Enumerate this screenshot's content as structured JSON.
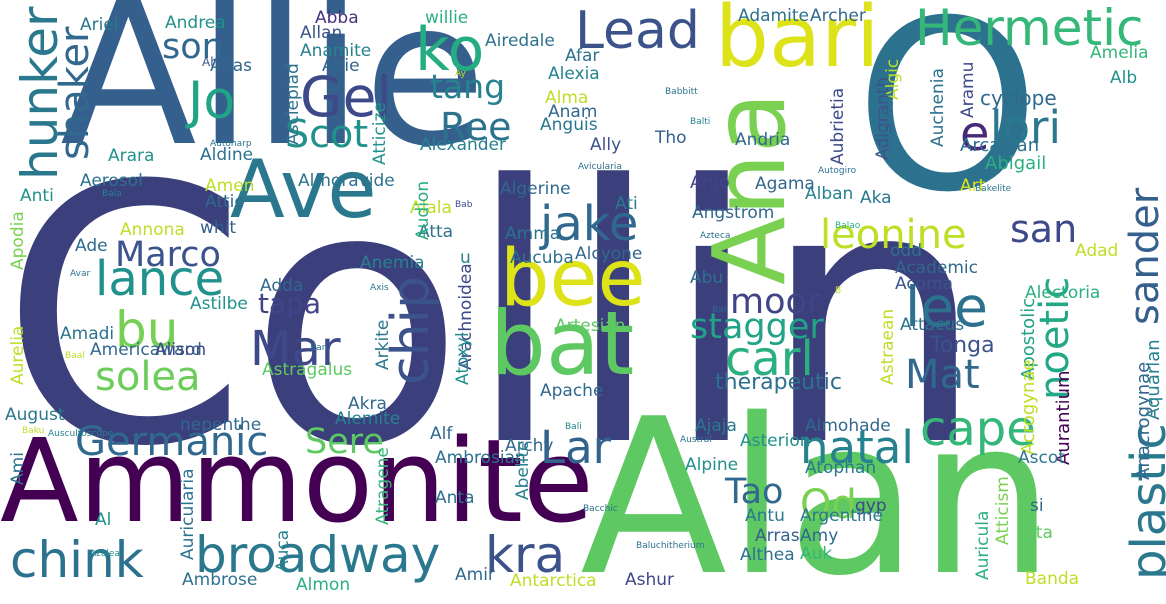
{
  "words": [
    {
      "text": "Collin",
      "color": "#3b3f7c"
    },
    {
      "text": "Allie",
      "color": "#35608d"
    },
    {
      "text": "Alan",
      "color": "#5ec962"
    },
    {
      "text": "Ammonite",
      "color": "#440154"
    },
    {
      "text": "Ana",
      "color": "#7ad151"
    },
    {
      "text": "O",
      "color": "#2c728e"
    },
    {
      "text": "bat",
      "color": "#5ec962"
    },
    {
      "text": "bee",
      "color": "#dde318"
    },
    {
      "text": "Ave",
      "color": "#2a788e"
    },
    {
      "text": "bari",
      "color": "#dde318"
    },
    {
      "text": "Hermetic",
      "color": "#35b779"
    },
    {
      "text": "Lead",
      "color": "#3b528b"
    },
    {
      "text": "Gel",
      "color": "#3e4989"
    },
    {
      "text": "ko",
      "color": "#25ac82"
    },
    {
      "text": "son",
      "color": "#31688e"
    },
    {
      "text": "Jo",
      "color": "#20a386"
    },
    {
      "text": "hunker",
      "color": "#2a788e"
    },
    {
      "text": "shaker",
      "color": "#31688e"
    },
    {
      "text": "tang",
      "color": "#26828e"
    },
    {
      "text": "Ree",
      "color": "#2c728e"
    },
    {
      "text": "Scot",
      "color": "#21918c"
    },
    {
      "text": "lori",
      "color": "#2a788e"
    },
    {
      "text": "e",
      "color": "#482878"
    },
    {
      "text": "cyclope",
      "color": "#31688e"
    },
    {
      "text": "Marco",
      "color": "#3b528b"
    },
    {
      "text": "jake",
      "color": "#31688e"
    },
    {
      "text": "lance",
      "color": "#21918c"
    },
    {
      "text": "bu",
      "color": "#75d054"
    },
    {
      "text": "Mar",
      "color": "#3e4989"
    },
    {
      "text": "solea",
      "color": "#6ccd5a"
    },
    {
      "text": "chip",
      "color": "#3b528b"
    },
    {
      "text": "tapa",
      "color": "#414487"
    },
    {
      "text": "leonine",
      "color": "#bddf26"
    },
    {
      "text": "san",
      "color": "#3e4989"
    },
    {
      "text": "moor",
      "color": "#414487"
    },
    {
      "text": "lee",
      "color": "#2c728e"
    },
    {
      "text": "stagger",
      "color": "#20a386"
    },
    {
      "text": "carl",
      "color": "#2ab07f"
    },
    {
      "text": "Mat",
      "color": "#31688e"
    },
    {
      "text": "sander",
      "color": "#35608d"
    },
    {
      "text": "noetic",
      "color": "#22a884"
    },
    {
      "text": "Germanic",
      "color": "#31688e"
    },
    {
      "text": "Sere",
      "color": "#5ec962"
    },
    {
      "text": "Lar",
      "color": "#33638d"
    },
    {
      "text": "natal",
      "color": "#26828e"
    },
    {
      "text": "cape",
      "color": "#35b779"
    },
    {
      "text": "plastic",
      "color": "#2a788e"
    },
    {
      "text": "Tao",
      "color": "#31688e"
    },
    {
      "text": "Od",
      "color": "#7ad151"
    },
    {
      "text": "chink",
      "color": "#2c728e"
    },
    {
      "text": "broadway",
      "color": "#2a788e"
    },
    {
      "text": "kra",
      "color": "#3b528b"
    },
    {
      "text": "therapeutic",
      "color": "#2d708e"
    },
    {
      "text": "Tonga",
      "color": "#3b528b"
    },
    {
      "text": "Apostolic",
      "color": "#20a386"
    },
    {
      "text": "Acrogynae",
      "color": "#bddf26"
    },
    {
      "text": "Aurantium",
      "color": "#440154"
    },
    {
      "text": "Anacrogynae",
      "color": "#31688e"
    },
    {
      "text": "Aquarian",
      "color": "#26828e"
    },
    {
      "text": "Amelia",
      "color": "#35b779"
    },
    {
      "text": "Alb",
      "color": "#21918c"
    },
    {
      "text": "Arcadian",
      "color": "#2c728e"
    },
    {
      "text": "Abigail",
      "color": "#2ab07f"
    },
    {
      "text": "Ariel",
      "color": "#2a788e"
    },
    {
      "text": "Andrea",
      "color": "#21918c"
    },
    {
      "text": "Abba",
      "color": "#46327e"
    },
    {
      "text": "Allan",
      "color": "#3b528b"
    },
    {
      "text": "Anamite",
      "color": "#26828e"
    },
    {
      "text": "Abie",
      "color": "#31688e"
    },
    {
      "text": "Ah",
      "color": "#3b528b"
    },
    {
      "text": "Atlas",
      "color": "#31688e"
    },
    {
      "text": "Asclepiad",
      "color": "#2c728e"
    },
    {
      "text": "Atticize",
      "color": "#21918c"
    },
    {
      "text": "willie",
      "color": "#2ab07f"
    },
    {
      "text": "Airedale",
      "color": "#2c728e"
    },
    {
      "text": "Afar",
      "color": "#2c728e"
    },
    {
      "text": "Alexia",
      "color": "#26828e"
    },
    {
      "text": "Adamite",
      "color": "#2c728e"
    },
    {
      "text": "Archer",
      "color": "#31688e"
    },
    {
      "text": "Anguis",
      "color": "#2a788e"
    },
    {
      "text": "Alma",
      "color": "#bddf26"
    },
    {
      "text": "Anam",
      "color": "#31688e"
    },
    {
      "text": "Ally",
      "color": "#3b528b"
    },
    {
      "text": "Alexander",
      "color": "#26828e"
    },
    {
      "text": "Tho",
      "color": "#35608d"
    },
    {
      "text": "Andria",
      "color": "#31688e"
    },
    {
      "text": "Aubrietia",
      "color": "#3e4989"
    },
    {
      "text": "Adigranth",
      "color": "#3b528b"
    },
    {
      "text": "Algic",
      "color": "#bddf26"
    },
    {
      "text": "Atlantic",
      "color": "#31688e"
    },
    {
      "text": "Auchenia",
      "color": "#2c728e"
    },
    {
      "text": "Aramu",
      "color": "#3e4989"
    },
    {
      "text": "Aldine",
      "color": "#2c728e"
    },
    {
      "text": "Arara",
      "color": "#21918c"
    },
    {
      "text": "Aerosol",
      "color": "#2c728e"
    },
    {
      "text": "Anti",
      "color": "#21918c"
    },
    {
      "text": "Amen",
      "color": "#bddf26"
    },
    {
      "text": "Attic",
      "color": "#31688e"
    },
    {
      "text": "Almoravide",
      "color": "#2c728e"
    },
    {
      "text": "Algerine",
      "color": "#31688e"
    },
    {
      "text": "Argo",
      "color": "#414487"
    },
    {
      "text": "Agama",
      "color": "#31688e"
    },
    {
      "text": "Alban",
      "color": "#26828e"
    },
    {
      "text": "Aka",
      "color": "#2a788e"
    },
    {
      "text": "Art",
      "color": "#dde318"
    },
    {
      "text": "Apodia",
      "color": "#7ad151"
    },
    {
      "text": "Annona",
      "color": "#bddf26"
    },
    {
      "text": "whit",
      "color": "#35608d"
    },
    {
      "text": "Alala",
      "color": "#bddf26"
    },
    {
      "text": "Ati",
      "color": "#2a788e"
    },
    {
      "text": "Angstrom",
      "color": "#31688e"
    },
    {
      "text": "Adad",
      "color": "#bddf26"
    },
    {
      "text": "Ade",
      "color": "#31688e"
    },
    {
      "text": "Atta",
      "color": "#2c728e"
    },
    {
      "text": "Amma",
      "color": "#2c728e"
    },
    {
      "text": "Audion",
      "color": "#2ab07f"
    },
    {
      "text": "u",
      "color": "#26828e"
    },
    {
      "text": "Aucuba",
      "color": "#2c728e"
    },
    {
      "text": "Alcyone",
      "color": "#31688e"
    },
    {
      "text": "odd",
      "color": "#2c728e"
    },
    {
      "text": "Academic",
      "color": "#31688e"
    },
    {
      "text": "Acoma",
      "color": "#3b528b"
    },
    {
      "text": "Abu",
      "color": "#2c728e"
    },
    {
      "text": "Adda",
      "color": "#31688e"
    },
    {
      "text": "Anemia",
      "color": "#26828e"
    },
    {
      "text": "Arachnoidea",
      "color": "#3e4989"
    },
    {
      "text": "Astilbe",
      "color": "#21918c"
    },
    {
      "text": "Amadi",
      "color": "#2c728e"
    },
    {
      "text": "Americaward",
      "color": "#31688e"
    },
    {
      "text": "Alison",
      "color": "#3e4989"
    },
    {
      "text": "Alectoria",
      "color": "#2ab07f"
    },
    {
      "text": "Artesian",
      "color": "#5ec962"
    },
    {
      "text": "Attacus",
      "color": "#2c728e"
    },
    {
      "text": "Atoxyl",
      "color": "#21918c"
    },
    {
      "text": "Arkite",
      "color": "#2a788e"
    },
    {
      "text": "Astragalus",
      "color": "#5ec962"
    },
    {
      "text": "Aurelia",
      "color": "#bddf26"
    },
    {
      "text": "Astraean",
      "color": "#bddf26"
    },
    {
      "text": "Apache",
      "color": "#31688e"
    },
    {
      "text": "August",
      "color": "#2a788e"
    },
    {
      "text": "Akra",
      "color": "#31688e"
    },
    {
      "text": "Alemite",
      "color": "#26828e"
    },
    {
      "text": "nepenthe",
      "color": "#31688e"
    },
    {
      "text": "Alf",
      "color": "#31688e"
    },
    {
      "text": "Archy",
      "color": "#31688e"
    },
    {
      "text": "Ajaja",
      "color": "#2a788e"
    },
    {
      "text": "Asterion",
      "color": "#21918c"
    },
    {
      "text": "Almohade",
      "color": "#31688e"
    },
    {
      "text": "Ascot",
      "color": "#2a788e"
    },
    {
      "text": "Ami",
      "color": "#2c728e"
    },
    {
      "text": "Ambrosian",
      "color": "#2c728e"
    },
    {
      "text": "Alpine",
      "color": "#21918c"
    },
    {
      "text": "Atophan",
      "color": "#2a788e"
    },
    {
      "text": "Atragene",
      "color": "#35b779"
    },
    {
      "text": "Abelite",
      "color": "#26828e"
    },
    {
      "text": "gyp",
      "color": "#3e4989"
    },
    {
      "text": "si",
      "color": "#31688e"
    },
    {
      "text": "Anta",
      "color": "#2c728e"
    },
    {
      "text": "Antu",
      "color": "#2a788e"
    },
    {
      "text": "Argentine",
      "color": "#2a788e"
    },
    {
      "text": "Auricula",
      "color": "#2ab07f"
    },
    {
      "text": "Atticism",
      "color": "#7ad151"
    },
    {
      "text": "Auricularia",
      "color": "#2c728e"
    },
    {
      "text": "Auca",
      "color": "#26828e"
    },
    {
      "text": "Al",
      "color": "#21918c"
    },
    {
      "text": "Arras",
      "color": "#35608d"
    },
    {
      "text": "Amy",
      "color": "#31688e"
    },
    {
      "text": "Althea",
      "color": "#2c728e"
    },
    {
      "text": "Auk",
      "color": "#35b779"
    },
    {
      "text": "uta",
      "color": "#5ec962"
    },
    {
      "text": "Amir",
      "color": "#31688e"
    },
    {
      "text": "Antarctica",
      "color": "#bddf26"
    },
    {
      "text": "Ambrose",
      "color": "#2c728e"
    },
    {
      "text": "Almon",
      "color": "#2ab07f"
    },
    {
      "text": "Ashur",
      "color": "#3e4989"
    },
    {
      "text": "Banda",
      "color": "#bddf26"
    },
    {
      "text": "Ay",
      "color": "#bddf26"
    },
    {
      "text": "Babbitt",
      "color": "#2c728e"
    },
    {
      "text": "Balti",
      "color": "#26828e"
    },
    {
      "text": "Autoharp",
      "color": "#2c728e"
    },
    {
      "text": "Bala",
      "color": "#26828e"
    },
    {
      "text": "Avicularia",
      "color": "#2c728e"
    },
    {
      "text": "Autogiro",
      "color": "#2c728e"
    },
    {
      "text": "Bakelite",
      "color": "#2a788e"
    },
    {
      "text": "Balao",
      "color": "#2ab07f"
    },
    {
      "text": "Bab",
      "color": "#3e4989"
    },
    {
      "text": "Azteca",
      "color": "#2c728e"
    },
    {
      "text": "Avar",
      "color": "#2c728e"
    },
    {
      "text": "Axis",
      "color": "#2a788e"
    },
    {
      "text": "Bal",
      "color": "#31688e"
    },
    {
      "text": "B",
      "color": "#bddf26"
    },
    {
      "text": "Baal",
      "color": "#bddf26"
    },
    {
      "text": "Ban",
      "color": "#2c728e"
    },
    {
      "text": "Baku",
      "color": "#bddf26"
    },
    {
      "text": "Auscultoscope",
      "color": "#26828e"
    },
    {
      "text": "Bali",
      "color": "#26828e"
    },
    {
      "text": "Austral",
      "color": "#2c728e"
    },
    {
      "text": "Bacchic",
      "color": "#2c728e"
    },
    {
      "text": "Baluchitherium",
      "color": "#2c728e"
    },
    {
      "text": "Azalea",
      "color": "#21918c"
    }
  ]
}
